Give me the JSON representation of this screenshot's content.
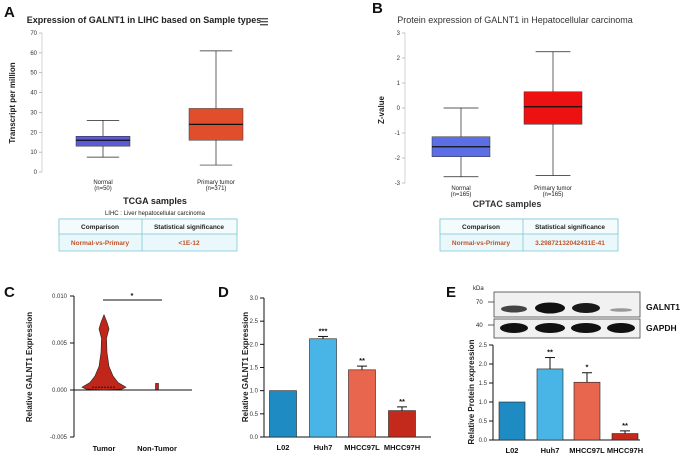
{
  "chart_data": [
    {
      "panel": "A",
      "type": "box",
      "title": "Expression of GALNT1 in LIHC based on Sample types",
      "xlabel": "TCGA samples",
      "ylabel": "Transcript per million",
      "ylim": [
        0,
        70
      ],
      "yticks": [
        0,
        10,
        20,
        30,
        40,
        50,
        60,
        70
      ],
      "categories": [
        "Normal",
        "Primary tumor"
      ],
      "sample_sizes": [
        "(n=50)",
        "(n=371)"
      ],
      "boxes": [
        {
          "min": 7.5,
          "q1": 13,
          "median": 16,
          "q3": 18,
          "max": 26,
          "color": "#5b5bd6"
        },
        {
          "min": 3.5,
          "q1": 16,
          "median": 24,
          "q3": 32,
          "max": 61,
          "color": "#e04e2c"
        }
      ],
      "menu_icon": "hamburger-icon",
      "table": {
        "caption": "LIHC : Liver hepatocellular carcinoma",
        "headers": [
          "Comparison",
          "Statistical significance"
        ],
        "rows": [
          [
            "Normal-vs-Primary",
            "<1E-12"
          ]
        ]
      }
    },
    {
      "panel": "B",
      "type": "box",
      "title": "Protein expression of GALNT1 in Hepatocellular carcinoma",
      "xlabel": "CPTAC samples",
      "ylabel": "Z-value",
      "ylim": [
        -3,
        3
      ],
      "yticks": [
        -3,
        -2,
        -1,
        0,
        1,
        2,
        3
      ],
      "categories": [
        "Normal",
        "Primary tumor"
      ],
      "sample_sizes": [
        "(n=165)",
        "(n=165)"
      ],
      "boxes": [
        {
          "min": -2.75,
          "q1": -1.95,
          "median": -1.55,
          "q3": -1.15,
          "max": 0,
          "color": "#5b6ee6"
        },
        {
          "min": -2.7,
          "q1": -0.65,
          "median": 0.05,
          "q3": 0.65,
          "max": 2.25,
          "color": "#ee1111"
        }
      ],
      "table": {
        "headers": [
          "Comparison",
          "Statistical significance"
        ],
        "rows": [
          [
            "Normal-vs-Primary",
            "3.29872132042431E-41"
          ]
        ]
      }
    },
    {
      "panel": "C",
      "type": "violin",
      "ylabel": "Relative GALNT1 Expression",
      "ylim": [
        -0.005,
        0.01
      ],
      "yticks": [
        -0.005,
        0.0,
        0.005,
        0.01
      ],
      "ytick_labels": [
        "-0.005",
        "0.000",
        "0.005",
        "0.010"
      ],
      "categories": [
        "Tumor",
        "Non-Tumor"
      ],
      "significance": "*",
      "series": [
        {
          "name": "Tumor",
          "min": 0.0,
          "median": 0.0003,
          "max": 0.008,
          "color": "#c0261a"
        },
        {
          "name": "Non-Tumor",
          "min": 0.0,
          "median": 0.0,
          "max": 0.0007,
          "color": "#c0261a"
        }
      ]
    },
    {
      "panel": "D",
      "type": "bar",
      "ylabel": "Relative GALNT1 Expression",
      "ylim": [
        0,
        3.0
      ],
      "yticks": [
        0.0,
        0.5,
        1.0,
        1.5,
        2.0,
        2.5,
        3.0
      ],
      "ytick_labels": [
        "0.0",
        "0.5",
        "1.0",
        "1.5",
        "2.0",
        "2.5",
        "3.0"
      ],
      "categories": [
        "L02",
        "Huh7",
        "MHCC97L",
        "MHCC97H"
      ],
      "values": [
        1.0,
        2.12,
        1.45,
        0.57
      ],
      "errors": [
        0,
        0.05,
        0.08,
        0.08
      ],
      "significance": [
        "",
        "***",
        "**",
        "**"
      ],
      "colors": [
        "#1f8bc3",
        "#49b4e6",
        "#e8654e",
        "#c42a1c"
      ]
    },
    {
      "panel": "E",
      "type": "bar",
      "ylabel": "Relative Protein expression",
      "ylim": [
        0,
        2.5
      ],
      "yticks": [
        0.0,
        0.5,
        1.0,
        1.5,
        2.0,
        2.5
      ],
      "ytick_labels": [
        "0.0",
        "0.5",
        "1.0",
        "1.5",
        "2.0",
        "2.5"
      ],
      "categories": [
        "L02",
        "Huh7",
        "MHCC97L",
        "MHCC97H"
      ],
      "values": [
        1.0,
        1.87,
        1.52,
        0.17
      ],
      "errors": [
        0,
        0.3,
        0.25,
        0.07
      ],
      "significance": [
        "",
        "**",
        "*",
        "**"
      ],
      "colors": [
        "#1f8bc3",
        "#49b4e6",
        "#e8654e",
        "#c42a1c"
      ],
      "blot": {
        "unit": "kDa",
        "markers": [
          "70",
          "40"
        ],
        "bands": [
          "GALNT1",
          "GAPDH"
        ]
      }
    }
  ]
}
